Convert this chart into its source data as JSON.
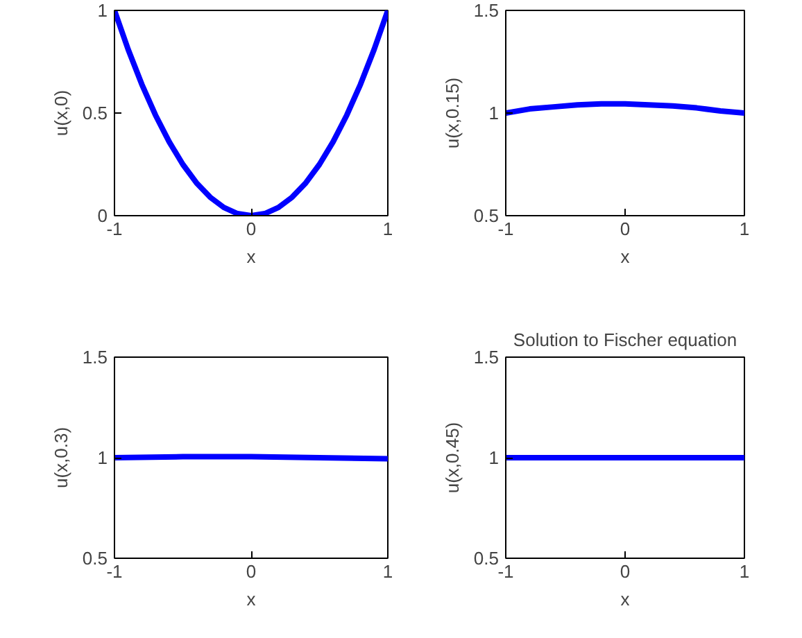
{
  "chart_data": [
    {
      "type": "line",
      "xlabel": "x",
      "ylabel": "u(x,0)",
      "x": [
        -1,
        -0.9,
        -0.8,
        -0.7,
        -0.6,
        -0.5,
        -0.4,
        -0.3,
        -0.2,
        -0.1,
        0,
        0.1,
        0.2,
        0.3,
        0.4,
        0.5,
        0.6,
        0.7,
        0.8,
        0.9,
        1
      ],
      "xlim": [
        -1,
        1
      ],
      "xticks": [
        -1,
        0,
        1
      ],
      "ylim": [
        0,
        1
      ],
      "yticks": [
        0,
        0.5,
        1
      ],
      "series": [
        {
          "color": "#0000ff",
          "values": [
            1,
            0.81,
            0.64,
            0.49,
            0.36,
            0.25,
            0.16,
            0.09,
            0.04,
            0.01,
            0,
            0.01,
            0.04,
            0.09,
            0.16,
            0.25,
            0.36,
            0.49,
            0.64,
            0.81,
            1
          ]
        }
      ]
    },
    {
      "type": "line",
      "xlabel": "x",
      "ylabel": "u(x,0.15)",
      "x": [
        -1,
        -0.8,
        -0.6,
        -0.4,
        -0.2,
        0,
        0.2,
        0.4,
        0.6,
        0.8,
        1
      ],
      "xlim": [
        -1,
        1
      ],
      "xticks": [
        -1,
        0,
        1
      ],
      "ylim": [
        0.5,
        1.5
      ],
      "yticks": [
        0.5,
        1,
        1.5
      ],
      "series": [
        {
          "color": "#0000ff",
          "values": [
            1.0,
            1.02,
            1.03,
            1.04,
            1.045,
            1.045,
            1.04,
            1.035,
            1.025,
            1.01,
            1.0
          ]
        }
      ]
    },
    {
      "type": "line",
      "xlabel": "x",
      "ylabel": "u(x,0.3)",
      "x": [
        -1,
        -0.5,
        0,
        0.5,
        1
      ],
      "xlim": [
        -1,
        1
      ],
      "xticks": [
        -1,
        0,
        1
      ],
      "ylim": [
        0.5,
        1.5
      ],
      "yticks": [
        0.5,
        1,
        1.5
      ],
      "series": [
        {
          "color": "#0000ff",
          "values": [
            1.0,
            1.005,
            1.005,
            1.0,
            0.995
          ]
        }
      ]
    },
    {
      "type": "line",
      "title": "Solution to Fischer equation",
      "xlabel": "x",
      "ylabel": "u(x,0.45)",
      "x": [
        -1,
        -0.5,
        0,
        0.5,
        1
      ],
      "xlim": [
        -1,
        1
      ],
      "xticks": [
        -1,
        0,
        1
      ],
      "ylim": [
        0.5,
        1.5
      ],
      "yticks": [
        0.5,
        1,
        1.5
      ],
      "series": [
        {
          "color": "#0000ff",
          "values": [
            1.0,
            1.0,
            1.0,
            1.0,
            1.0
          ]
        }
      ]
    }
  ]
}
